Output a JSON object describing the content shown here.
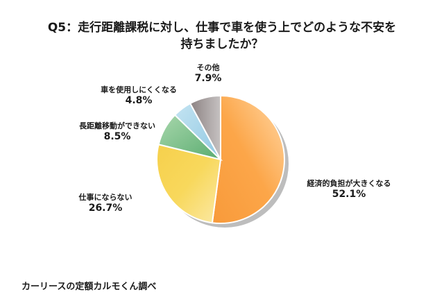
{
  "title_line1": "Q5：走行距離課税に対し、仕事で車を使う上でどのような不安を",
  "title_line2": "持ちましたか？",
  "footer": "カーリースの定額カルモくん調べ",
  "labels": [
    {
      "name": "経済的負担が大きくなる",
      "pct": "52.1%"
    },
    {
      "name": "仕事にならない",
      "pct": "26.7%"
    },
    {
      "name": "長距離移動ができない",
      "pct": "8.5%"
    },
    {
      "name": "車を使用しにくくなる",
      "pct": "4.8%"
    },
    {
      "name": "その他",
      "pct": "7.9%"
    }
  ],
  "chart_data": {
    "type": "pie",
    "title": "Q5：走行距離課税に対し、仕事で車を使う上でどのような不安を持ちましたか？",
    "categories": [
      "経済的負担が大きくなる",
      "仕事にならない",
      "長距離移動ができない",
      "車を使用しにくくなる",
      "その他"
    ],
    "values": [
      52.1,
      26.7,
      8.5,
      4.8,
      7.9
    ],
    "colors": [
      "#fba24a",
      "#f7d45a",
      "#7cc08c",
      "#a9d6ea",
      "#9a9090"
    ],
    "start_angle": "12 o'clock, clockwise",
    "source": "カーリースの定額カルモくん調べ"
  }
}
